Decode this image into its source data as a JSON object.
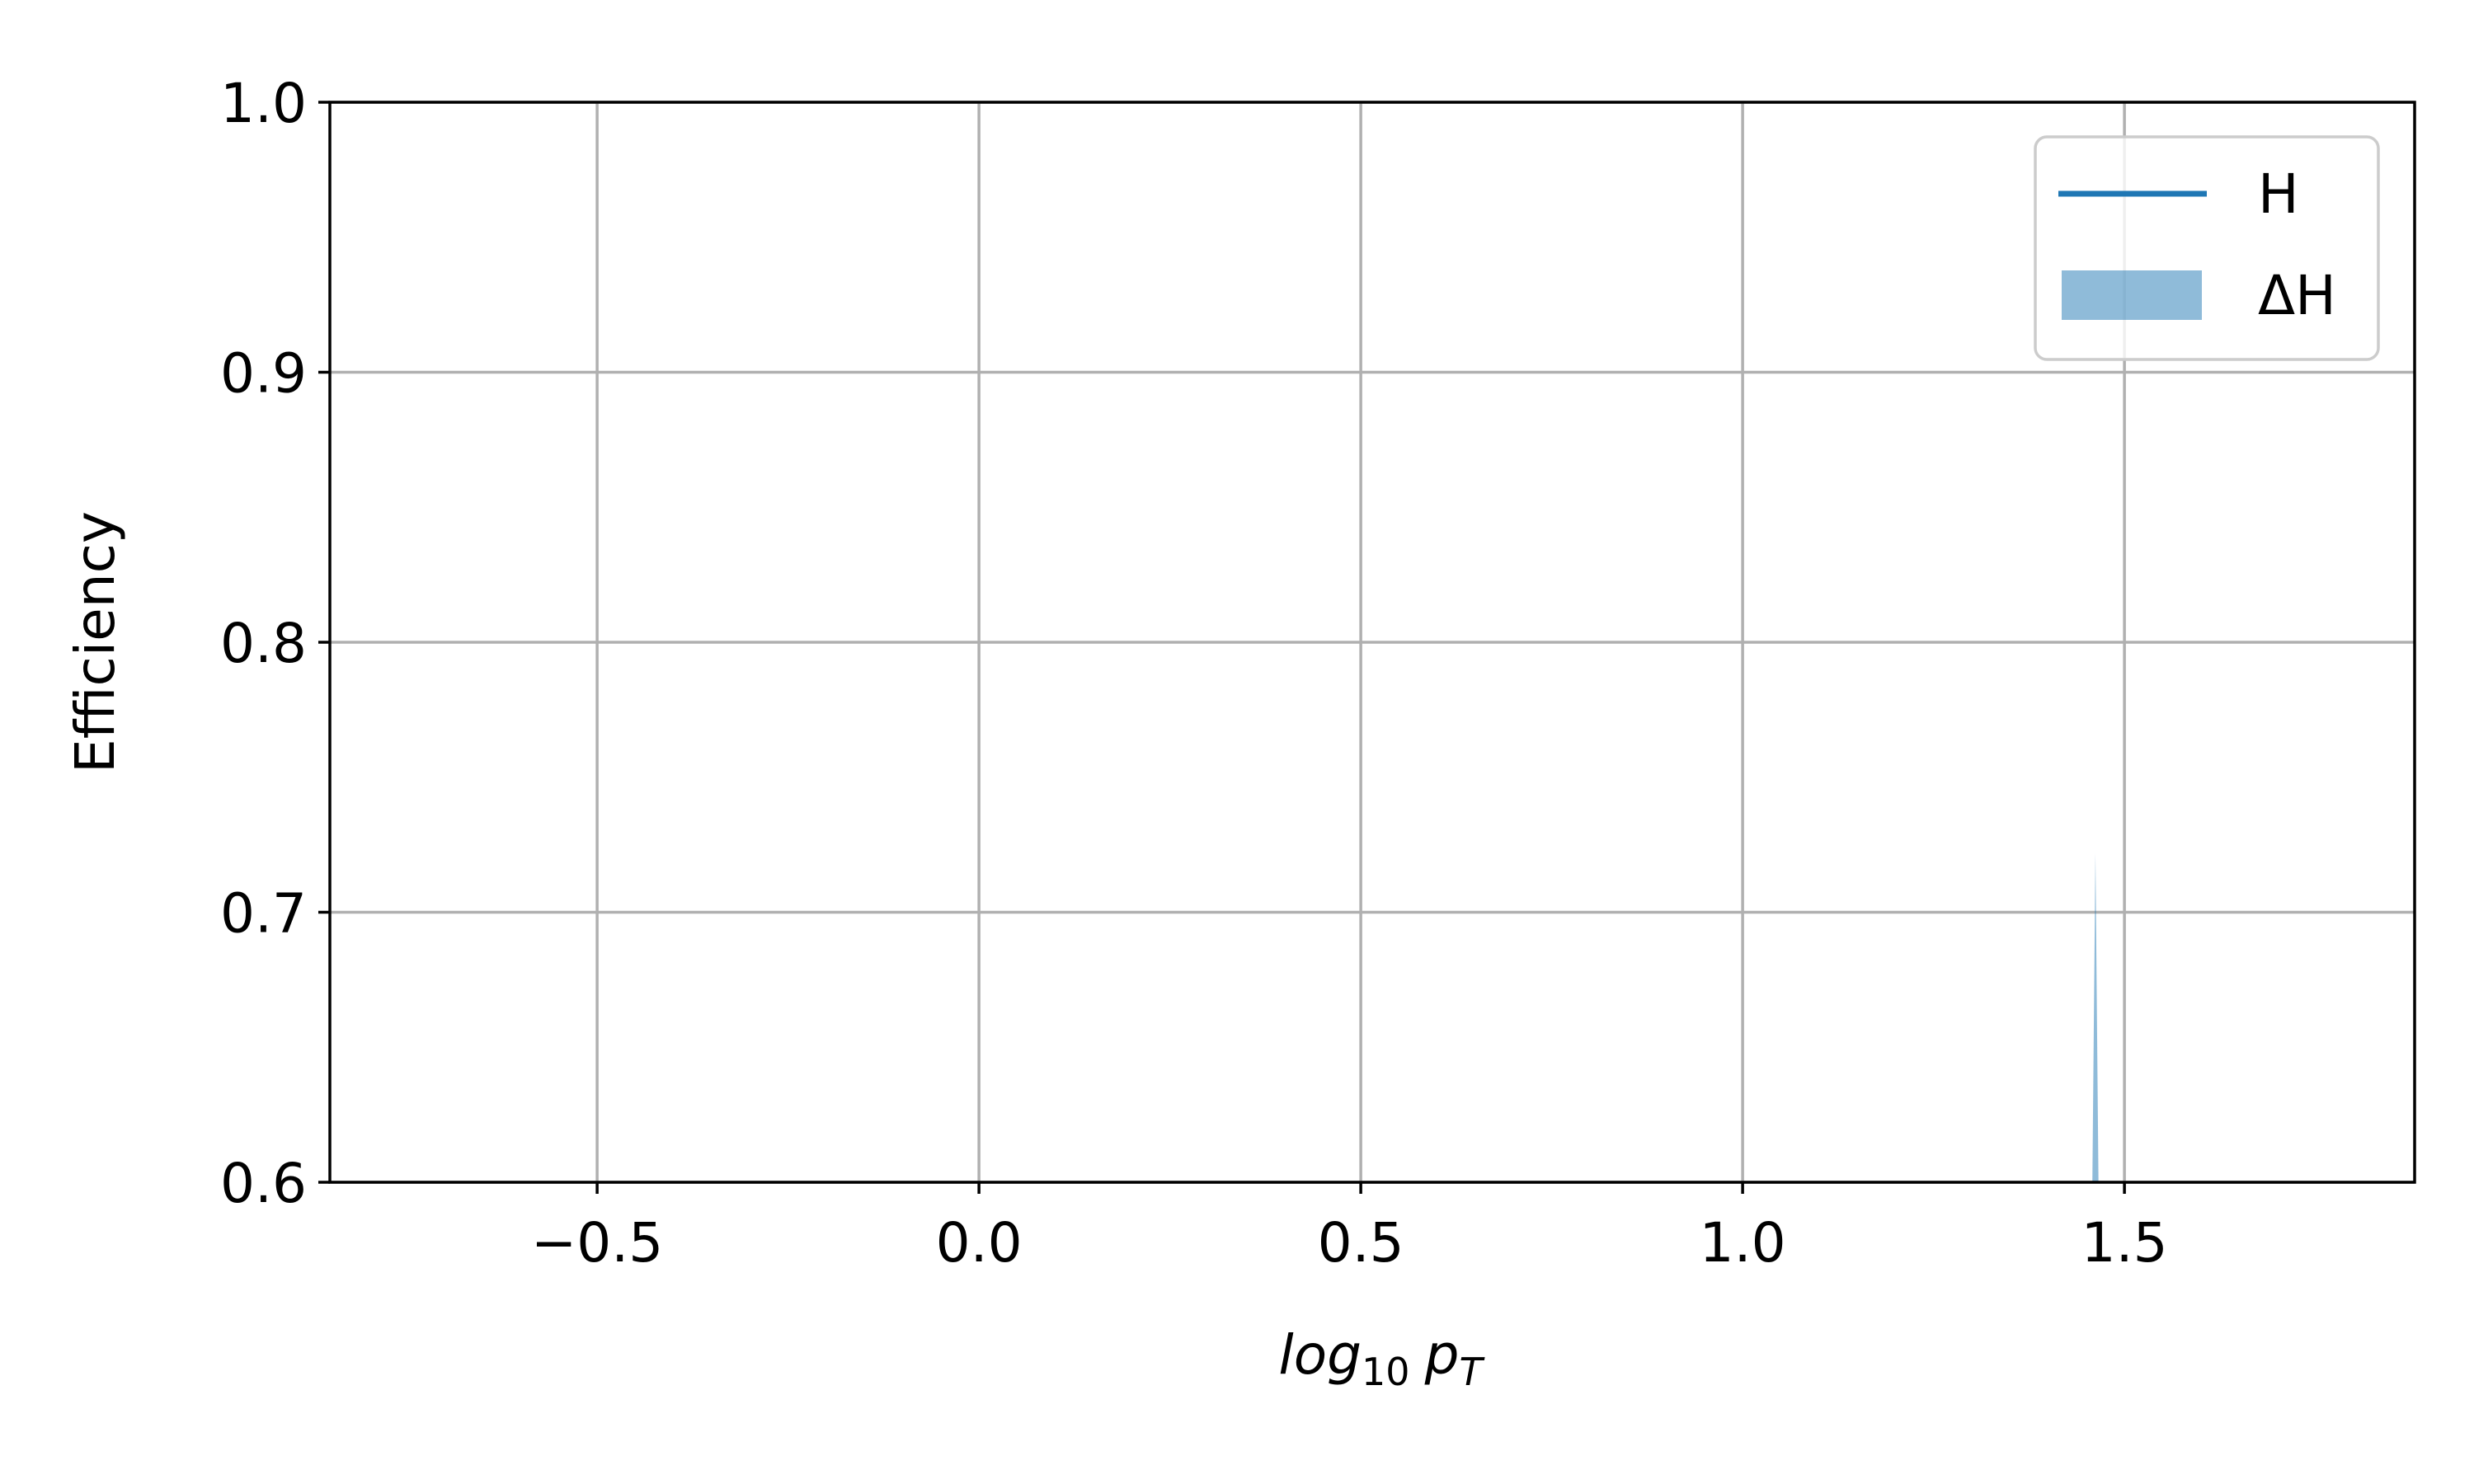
{
  "chart_data": {
    "type": "line",
    "title": "",
    "xlabel": "log10 pT",
    "xlabel_parts": {
      "base": "log",
      "sub": "10",
      "var": "p",
      "var_sub": "T"
    },
    "ylabel": "Efficiency",
    "xlim": [
      -0.85,
      1.88
    ],
    "ylim": [
      0.6,
      1.0
    ],
    "x_ticks": [
      -0.5,
      0.0,
      0.5,
      1.0,
      1.5
    ],
    "x_tick_labels": [
      "−0.5",
      "0.0",
      "0.5",
      "1.0",
      "1.5"
    ],
    "y_ticks": [
      0.6,
      0.7,
      0.8,
      0.9,
      1.0
    ],
    "y_tick_labels": [
      "0.6",
      "0.7",
      "0.8",
      "0.9",
      "1.0"
    ],
    "grid": true,
    "legend_position": "top-right",
    "series": [
      {
        "name": "H",
        "kind": "line",
        "color": "#1f77b4",
        "x": [],
        "y": []
      },
      {
        "name": "ΔH",
        "kind": "band",
        "color": "#1f77b4",
        "opacity": 0.5,
        "x": [
          1.458,
          1.462,
          1.466
        ],
        "lower": [
          0.6,
          0.6,
          0.6
        ],
        "upper": [
          0.6,
          0.722,
          0.6
        ]
      }
    ]
  }
}
